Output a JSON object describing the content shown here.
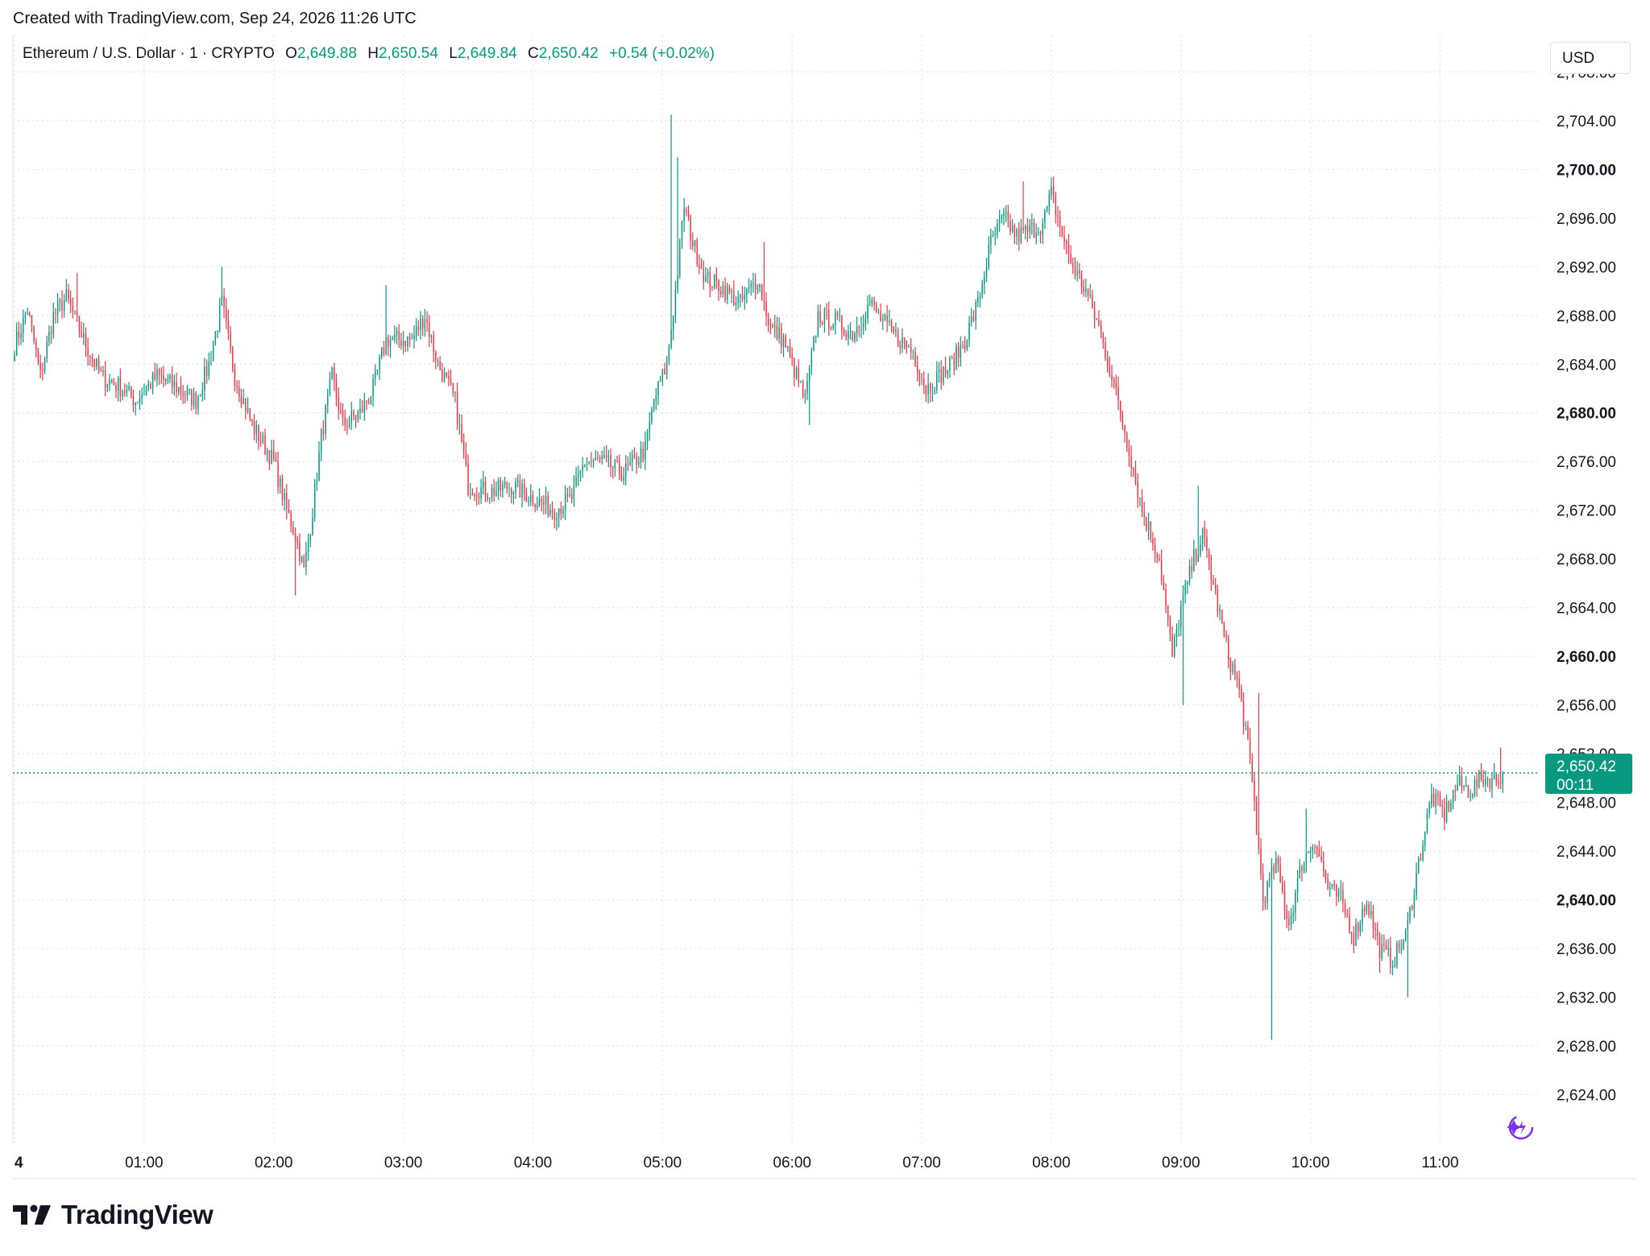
{
  "header": {
    "created_note": "Created with TradingView.com, Sep 24, 2026 11:26 UTC"
  },
  "legend": {
    "symbol": "Ethereum / U.S. Dollar · 1 · CRYPTO",
    "o_label": "O",
    "o_value": "2,649.88",
    "h_label": "H",
    "h_value": "2,650.54",
    "l_label": "L",
    "l_value": "2,649.84",
    "c_label": "C",
    "c_value": "2,650.42",
    "change": "+0.54 (+0.02%)"
  },
  "currency": "USD",
  "price_label": {
    "price": "2,650.42",
    "countdown": "00:11"
  },
  "brand": {
    "name": "TradingView"
  },
  "icons": {
    "logo": "tradingview-logo-icon",
    "assistant": "sparkle-icon"
  },
  "colors": {
    "up": "#089981",
    "down": "#f23645",
    "grid": "#e0e3eb",
    "text": "#131722",
    "accent": "#089981"
  },
  "chart_data": {
    "type": "candlestick",
    "title": "Ethereum / U.S. Dollar · 1 · CRYPTO",
    "interval": "1",
    "ylim": [
      2620,
      2711
    ],
    "y_ticks": [
      2708,
      2704,
      2700,
      2696,
      2692,
      2688,
      2684,
      2680,
      2676,
      2672,
      2668,
      2664,
      2660,
      2656,
      2652,
      2648,
      2644,
      2640,
      2636,
      2632,
      2628,
      2624
    ],
    "y_tick_labels": [
      "2,708.00",
      "2,704.00",
      "2,700.00",
      "2,696.00",
      "2,692.00",
      "2,688.00",
      "2,684.00",
      "2,680.00",
      "2,676.00",
      "2,672.00",
      "2,668.00",
      "2,664.00",
      "2,660.00",
      "2,656.00",
      "2,652.00",
      "2,648.00",
      "2,644.00",
      "2,640.00",
      "2,636.00",
      "2,632.00",
      "2,628.00",
      "2,624.00"
    ],
    "y_bold_ticks": [
      "2,700.00",
      "2,680.00",
      "2,660.00",
      "2,640.00"
    ],
    "x_ticks": [
      0,
      60,
      120,
      180,
      240,
      300,
      360,
      420,
      480,
      540,
      600,
      660
    ],
    "x_tick_labels": [
      "4",
      "01:00",
      "02:00",
      "03:00",
      "04:00",
      "05:00",
      "06:00",
      "07:00",
      "08:00",
      "09:00",
      "10:00",
      "11:00"
    ],
    "xlim": [
      0,
      693
    ],
    "last_price": 2650.42,
    "grid": true,
    "anchors": [
      [
        0,
        2685.5
      ],
      [
        6,
        2688.5
      ],
      [
        12,
        2683
      ],
      [
        18,
        2688
      ],
      [
        24,
        2689.5
      ],
      [
        32,
        2686
      ],
      [
        40,
        2683
      ],
      [
        50,
        2682
      ],
      [
        56,
        2681
      ],
      [
        66,
        2683
      ],
      [
        76,
        2682
      ],
      [
        84,
        2681
      ],
      [
        90,
        2684
      ],
      [
        96,
        2689
      ],
      [
        102,
        2683
      ],
      [
        110,
        2679
      ],
      [
        120,
        2676
      ],
      [
        126,
        2672
      ],
      [
        130,
        2670
      ],
      [
        134,
        2667
      ],
      [
        138,
        2672
      ],
      [
        142,
        2678
      ],
      [
        147,
        2683
      ],
      [
        152,
        2679
      ],
      [
        160,
        2680
      ],
      [
        166,
        2682
      ],
      [
        172,
        2686
      ],
      [
        178,
        2686
      ],
      [
        184,
        2686
      ],
      [
        190,
        2688
      ],
      [
        196,
        2684
      ],
      [
        204,
        2681
      ],
      [
        210,
        2674
      ],
      [
        220,
        2673.5
      ],
      [
        230,
        2674
      ],
      [
        240,
        2673
      ],
      [
        250,
        2672
      ],
      [
        258,
        2673
      ],
      [
        264,
        2676
      ],
      [
        272,
        2676
      ],
      [
        282,
        2675
      ],
      [
        292,
        2677
      ],
      [
        296,
        2681
      ],
      [
        302,
        2684
      ],
      [
        306,
        2690
      ],
      [
        310,
        2697
      ],
      [
        314,
        2694
      ],
      [
        320,
        2691
      ],
      [
        326,
        2690.5
      ],
      [
        336,
        2689
      ],
      [
        344,
        2691
      ],
      [
        350,
        2687
      ],
      [
        356,
        2686
      ],
      [
        362,
        2683
      ],
      [
        366,
        2681
      ],
      [
        372,
        2688
      ],
      [
        380,
        2687.5
      ],
      [
        388,
        2686.5
      ],
      [
        396,
        2689
      ],
      [
        404,
        2687
      ],
      [
        410,
        2686
      ],
      [
        416,
        2685
      ],
      [
        422,
        2682
      ],
      [
        428,
        2683
      ],
      [
        434,
        2684
      ],
      [
        440,
        2686
      ],
      [
        446,
        2689
      ],
      [
        452,
        2694
      ],
      [
        458,
        2696
      ],
      [
        464,
        2694.5
      ],
      [
        470,
        2695
      ],
      [
        476,
        2695.5
      ],
      [
        480,
        2698
      ],
      [
        486,
        2694
      ],
      [
        490,
        2692
      ],
      [
        496,
        2690
      ],
      [
        502,
        2687
      ],
      [
        508,
        2683
      ],
      [
        512,
        2680
      ],
      [
        516,
        2677
      ],
      [
        522,
        2672
      ],
      [
        530,
        2668
      ],
      [
        536,
        2660
      ],
      [
        540,
        2664
      ],
      [
        546,
        2668
      ],
      [
        550,
        2670
      ],
      [
        556,
        2665
      ],
      [
        562,
        2660
      ],
      [
        566,
        2658
      ],
      [
        570,
        2654
      ],
      [
        574,
        2648
      ],
      [
        578,
        2640
      ],
      [
        584,
        2643
      ],
      [
        590,
        2638
      ],
      [
        596,
        2643
      ],
      [
        602,
        2645
      ],
      [
        608,
        2641
      ],
      [
        614,
        2640
      ],
      [
        620,
        2637
      ],
      [
        626,
        2640
      ],
      [
        632,
        2636
      ],
      [
        638,
        2635
      ],
      [
        644,
        2637
      ],
      [
        650,
        2643
      ],
      [
        656,
        2648.5
      ],
      [
        662,
        2647
      ],
      [
        668,
        2649.5
      ],
      [
        674,
        2649
      ],
      [
        680,
        2650
      ],
      [
        686,
        2649.8
      ],
      [
        689,
        2650.42
      ]
    ],
    "extremes": [
      [
        29,
        2691.5
      ],
      [
        96,
        2692
      ],
      [
        130,
        2665
      ],
      [
        172,
        2690.5
      ],
      [
        304,
        2704.5
      ],
      [
        307,
        2701
      ],
      [
        347,
        2694
      ],
      [
        368,
        2679
      ],
      [
        467,
        2699
      ],
      [
        541,
        2656
      ],
      [
        548,
        2674
      ],
      [
        576,
        2657
      ],
      [
        582,
        2628.5
      ],
      [
        598,
        2647.5
      ],
      [
        632,
        2634
      ],
      [
        637,
        2634.5
      ],
      [
        645,
        2632
      ],
      [
        688,
        2652.5
      ]
    ]
  }
}
